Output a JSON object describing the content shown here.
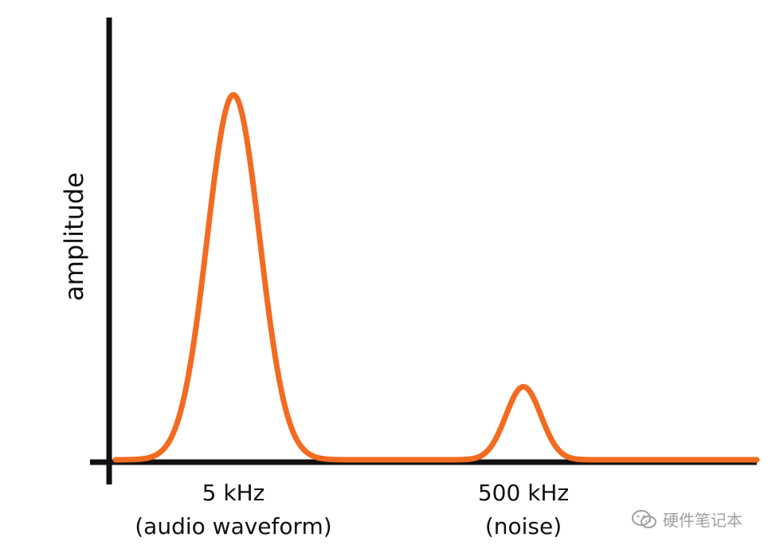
{
  "chart_data": {
    "type": "line",
    "title": "",
    "xlabel": "",
    "ylabel": "amplitude",
    "ticks": [
      {
        "id": "tick-5khz",
        "value": 5,
        "lines": [
          "5 kHz",
          "(audio waveform)"
        ]
      },
      {
        "id": "tick-500khz",
        "value": 500,
        "lines": [
          "500 kHz",
          "(noise)"
        ]
      }
    ],
    "peaks": [
      {
        "frequency_khz": 5,
        "relative_amplitude": 1.0
      },
      {
        "frequency_khz": 500,
        "relative_amplitude": 0.2
      }
    ],
    "grid": false,
    "legend": "none",
    "colors": {
      "curve": "#F26B21",
      "axis": "#111111"
    }
  },
  "watermark": {
    "text": "硬件笔记本",
    "icon": "wechat-icon"
  }
}
